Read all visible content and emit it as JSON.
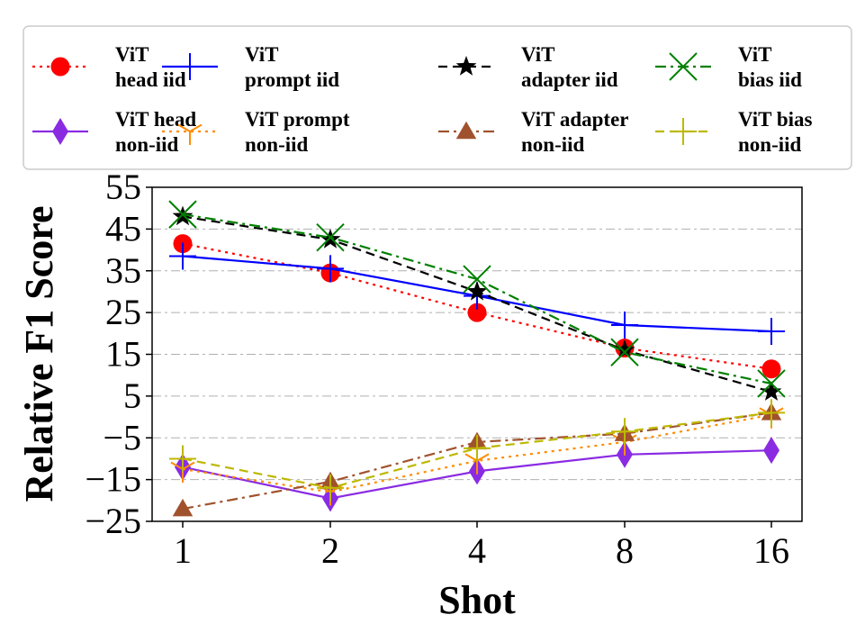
{
  "chart_data": {
    "type": "line",
    "title": "",
    "xlabel": "Shot",
    "ylabel": "Relative F1 Score",
    "categories": [
      "1",
      "2",
      "4",
      "8",
      "16"
    ],
    "yticks": [
      55,
      45,
      35,
      25,
      15,
      5,
      -5,
      -15,
      -25
    ],
    "ytick_labels": [
      "55",
      "45",
      "35",
      "25",
      "15",
      "5",
      "−5",
      "−15",
      "−25"
    ],
    "ylim": [
      -25,
      55
    ],
    "grid": "horizontal-dashed",
    "legend_position": "top",
    "series": [
      {
        "name": "ViT head iid",
        "label_lines": [
          "ViT",
          "head iid"
        ],
        "color": "#ff0000",
        "marker": "circle",
        "linestyle": "dotted",
        "values": [
          41.5,
          34.5,
          25,
          16.5,
          11.5
        ]
      },
      {
        "name": "ViT prompt iid",
        "label_lines": [
          "ViT",
          "prompt iid"
        ],
        "color": "#0000ff",
        "marker": "plus",
        "linestyle": "solid",
        "values": [
          38.5,
          35.5,
          29,
          22,
          20.5
        ]
      },
      {
        "name": "ViT adapter iid",
        "label_lines": [
          "ViT",
          "adapter iid"
        ],
        "color": "#000000",
        "marker": "star",
        "linestyle": "dashed",
        "values": [
          48,
          42.5,
          30,
          16,
          6
        ]
      },
      {
        "name": "ViT bias iid",
        "label_lines": [
          "ViT",
          "bias iid"
        ],
        "color": "#008000",
        "marker": "x",
        "linestyle": "dashdot",
        "values": [
          48.5,
          43,
          33,
          15.5,
          8
        ]
      },
      {
        "name": "ViT head non-iid",
        "label_lines": [
          "ViT head",
          "non-iid"
        ],
        "color": "#8a2be2",
        "marker": "diamond",
        "linestyle": "solid",
        "values": [
          -12,
          -19.5,
          -13,
          -9,
          -8
        ]
      },
      {
        "name": "ViT prompt non-iid",
        "label_lines": [
          "ViT prompt",
          "non-iid"
        ],
        "color": "#ff8c00",
        "marker": "tri",
        "linestyle": "dotted",
        "values": [
          -12.5,
          -18,
          -10.5,
          -6,
          0.5
        ]
      },
      {
        "name": "ViT adapter non-iid",
        "label_lines": [
          "ViT adapter",
          "non-iid"
        ],
        "color": "#a0522d",
        "marker": "triangle",
        "linestyle": "dashdot",
        "values": [
          -22,
          -15.5,
          -6,
          -4,
          1
        ]
      },
      {
        "name": "ViT bias non-iid",
        "label_lines": [
          "ViT bias",
          "non-iid"
        ],
        "color": "#bdb800",
        "marker": "plus",
        "linestyle": "dashed",
        "values": [
          -10,
          -17,
          -7.5,
          -3.5,
          1
        ]
      }
    ]
  }
}
